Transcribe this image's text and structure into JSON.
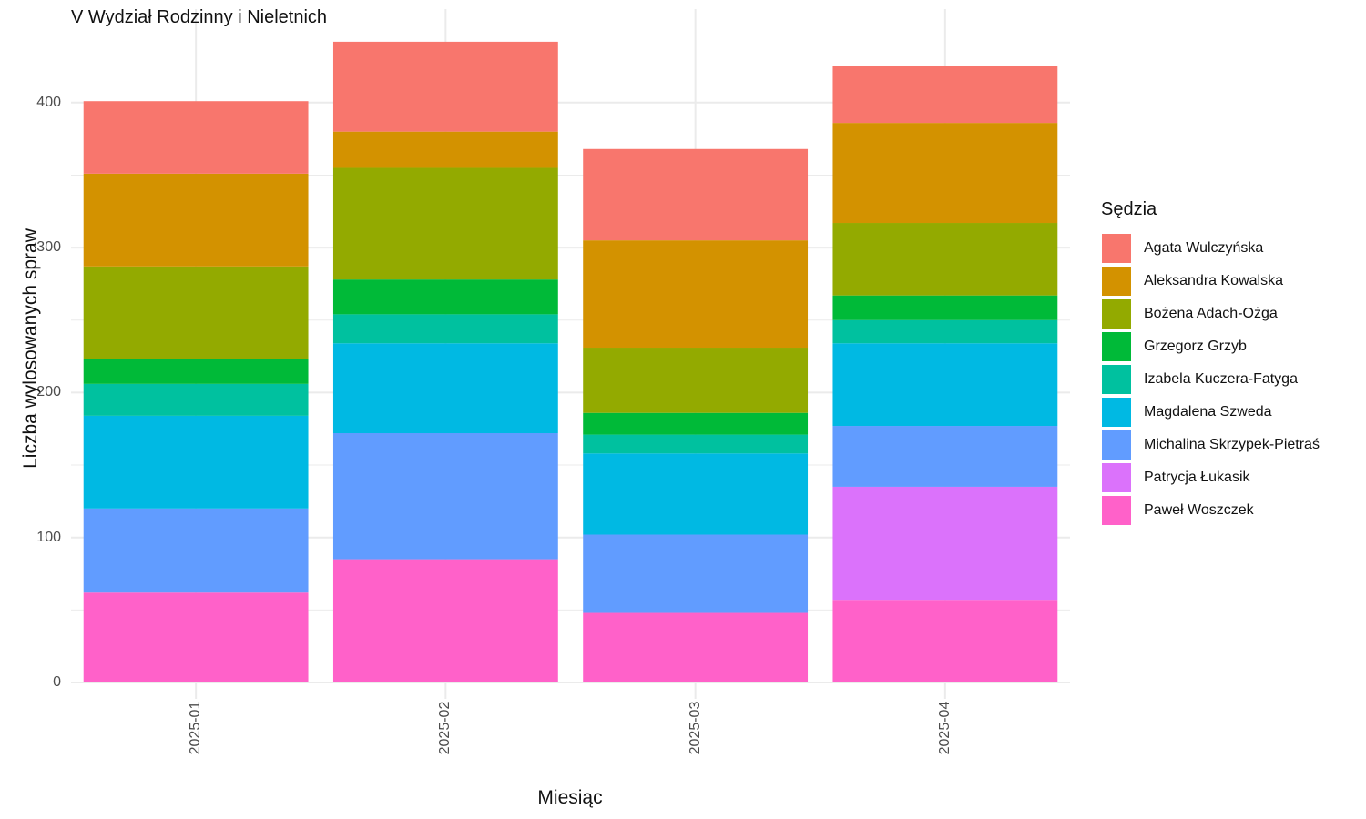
{
  "chart_data": {
    "type": "bar",
    "stacked": true,
    "title": "V Wydział Rodzinny i Nieletnich",
    "xlabel": "Miesiąc",
    "ylabel": "Liczba wylosowanych spraw",
    "categories": [
      "2025-01",
      "2025-02",
      "2025-03",
      "2025-04"
    ],
    "ylim": [
      0,
      442
    ],
    "yticks": [
      0,
      100,
      200,
      300,
      400
    ],
    "grid": true,
    "legend": {
      "title": "Sędzia",
      "position": "right"
    },
    "series": [
      {
        "name": "Paweł Woszczek",
        "color": "#FF61C9",
        "values": [
          62,
          85,
          48,
          57
        ]
      },
      {
        "name": "Patrycja Łukasik",
        "color": "#DB72FB",
        "values": [
          0,
          0,
          0,
          78
        ]
      },
      {
        "name": "Michalina Skrzypek-Pietraś",
        "color": "#619CFF",
        "values": [
          58,
          87,
          54,
          42
        ]
      },
      {
        "name": "Magdalena Szweda",
        "color": "#00B9E3",
        "values": [
          64,
          62,
          56,
          57
        ]
      },
      {
        "name": "Izabela Kuczera-Fatyga",
        "color": "#00C19F",
        "values": [
          22,
          20,
          13,
          16
        ]
      },
      {
        "name": "Grzegorz Grzyb",
        "color": "#00BA38",
        "values": [
          17,
          24,
          15,
          17
        ]
      },
      {
        "name": "Bożena Adach-Ożga",
        "color": "#93AA00",
        "values": [
          64,
          77,
          45,
          50
        ]
      },
      {
        "name": "Aleksandra Kowalska",
        "color": "#D39200",
        "values": [
          64,
          25,
          74,
          69
        ]
      },
      {
        "name": "Agata Wulczyńska",
        "color": "#F8766D",
        "values": [
          50,
          62,
          63,
          39
        ]
      }
    ]
  }
}
